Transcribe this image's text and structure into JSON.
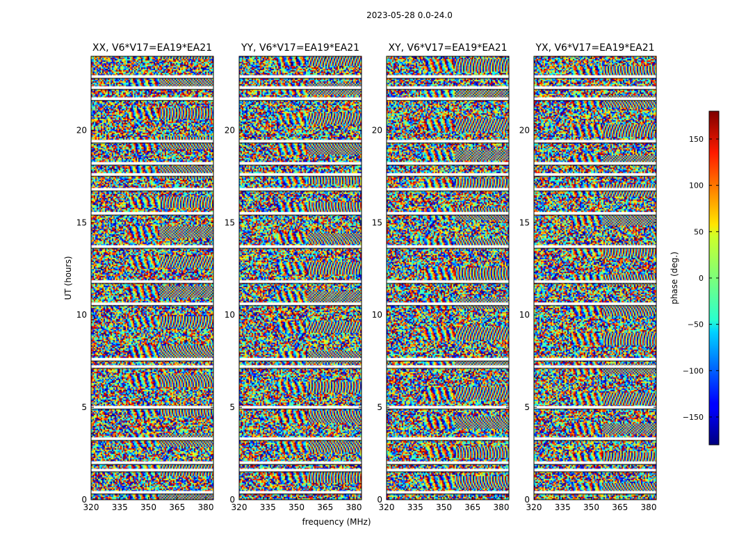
{
  "chart_data": {
    "type": "heatmap",
    "suptitle": "2023-05-28 0.0-24.0",
    "xlabel": "frequency (MHz)",
    "ylabel": "UT (hours)",
    "xlim": [
      320,
      384
    ],
    "ylim": [
      0,
      24
    ],
    "xticks": [
      320,
      335,
      350,
      365,
      380
    ],
    "yticks": [
      0,
      5,
      10,
      15,
      20
    ],
    "panels": [
      {
        "title": "XX, V6*V17=EA19*EA21",
        "pol": "XX"
      },
      {
        "title": "YY, V6*V17=EA19*EA21",
        "pol": "YY"
      },
      {
        "title": "XY, V6*V17=EA19*EA21",
        "pol": "XY"
      },
      {
        "title": "YX, V6*V17=EA19*EA21",
        "pol": "YX"
      }
    ],
    "colorbar": {
      "label": "phase (deg.)",
      "range": [
        -180,
        180
      ],
      "ticks": [
        -150,
        -100,
        -50,
        0,
        50,
        100,
        150
      ],
      "tick_labels": [
        "−150",
        "−100",
        "−50",
        "0",
        "50",
        "100",
        "150"
      ],
      "colormap": "jet"
    },
    "flagged_ut_hours": [
      0.4,
      1.6,
      2.0,
      3.3,
      5.0,
      7.2,
      7.6,
      10.6,
      11.8,
      13.7,
      15.5,
      16.8,
      17.6,
      18.2,
      19.4,
      21.7,
      22.3,
      22.9
    ]
  }
}
